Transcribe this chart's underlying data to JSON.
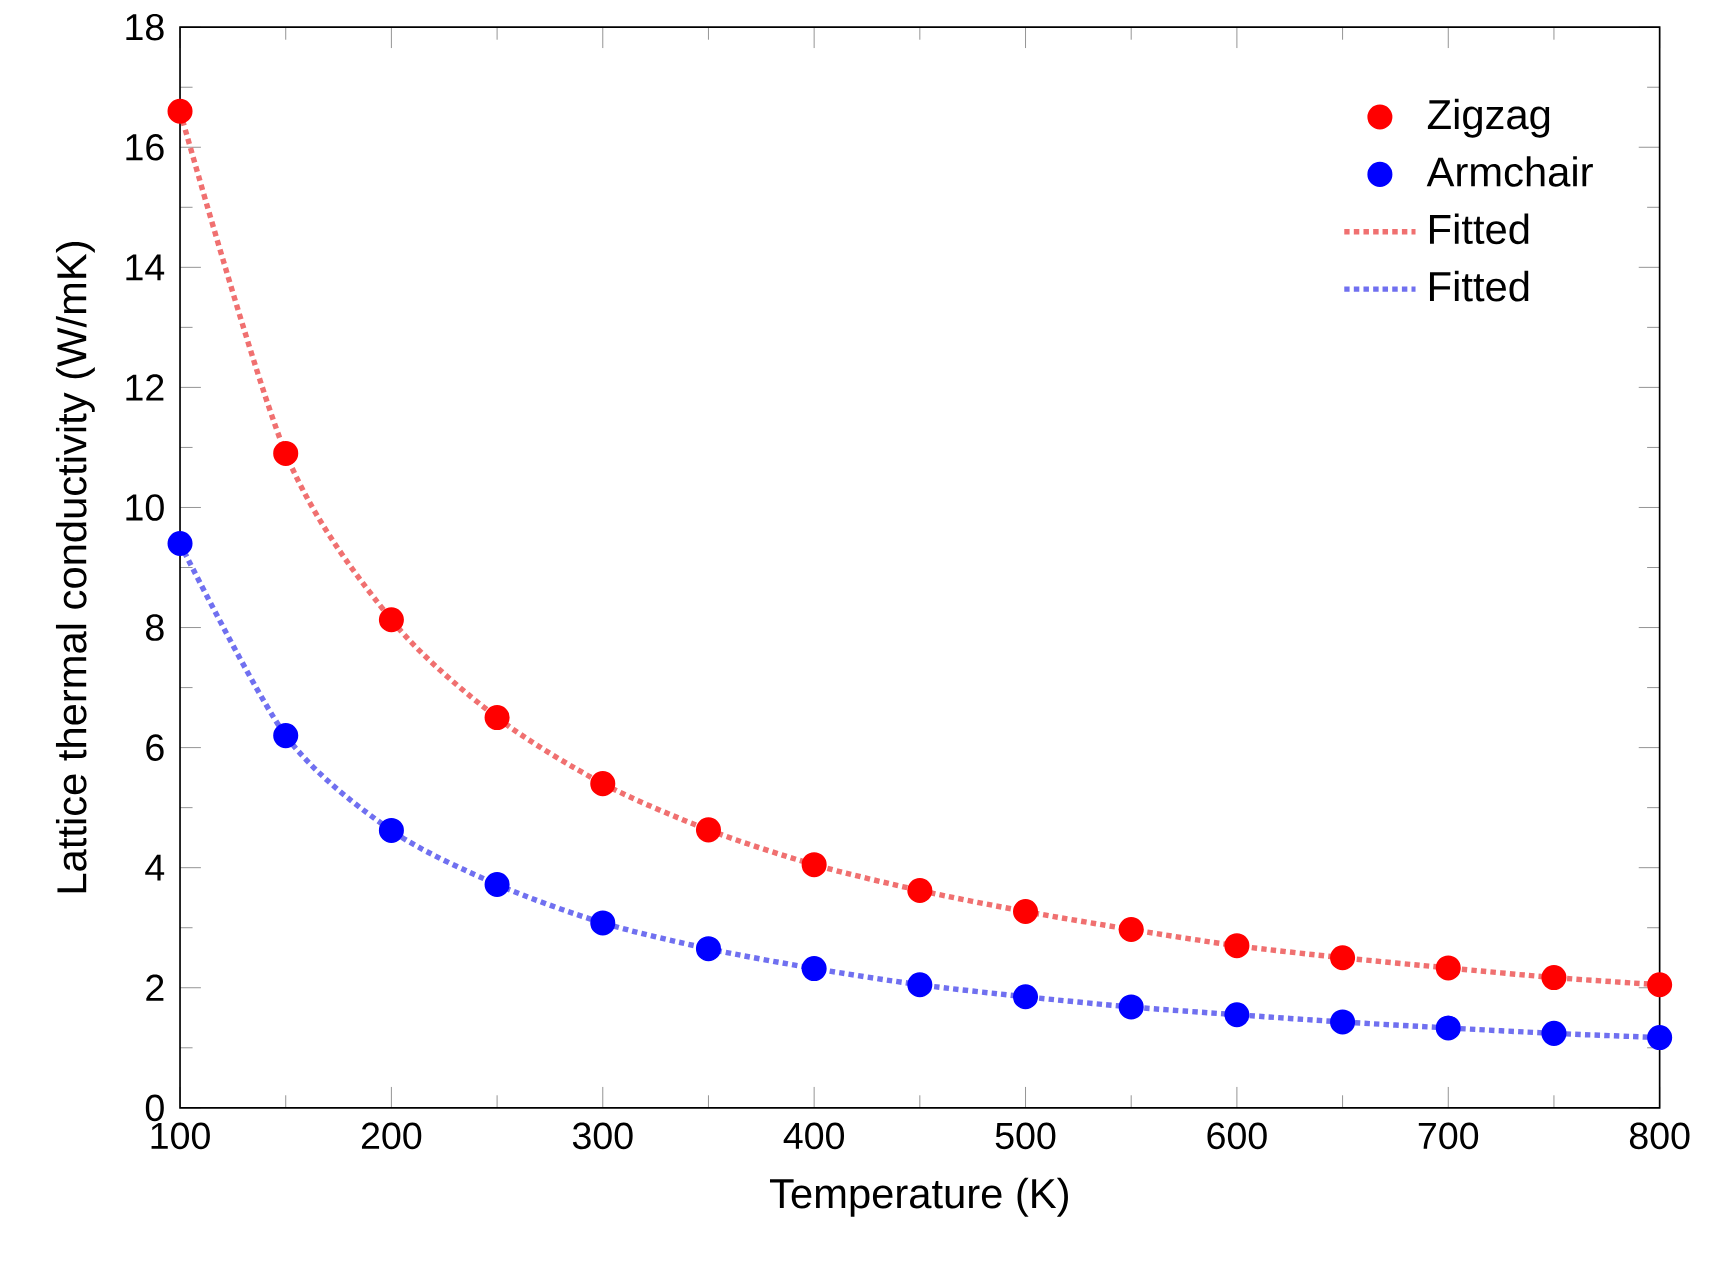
{
  "chart_data": {
    "type": "scatter",
    "xlabel": "Temperature (K)",
    "ylabel": "Lattice thermal conductivity (W/mK)",
    "xlim": [
      100,
      800
    ],
    "ylim": [
      0,
      18
    ],
    "xticks": [
      100,
      200,
      300,
      400,
      500,
      600,
      700,
      800
    ],
    "yticks": [
      0,
      2,
      4,
      6,
      8,
      10,
      12,
      14,
      16,
      18
    ],
    "grid": false,
    "legend": "top right",
    "x": [
      100,
      150,
      200,
      250,
      300,
      350,
      400,
      450,
      500,
      550,
      600,
      650,
      700,
      750,
      800
    ],
    "series": [
      {
        "name": "Zigzag",
        "marker": "circle",
        "color": "#ff0000",
        "values": [
          16.6,
          10.9,
          8.13,
          6.5,
          5.4,
          4.63,
          4.05,
          3.62,
          3.27,
          2.97,
          2.7,
          2.5,
          2.33,
          2.17,
          2.05
        ]
      },
      {
        "name": "Armchair",
        "marker": "circle",
        "color": "#0000ff",
        "values": [
          9.4,
          6.2,
          4.62,
          3.72,
          3.08,
          2.65,
          2.32,
          2.05,
          1.85,
          1.68,
          1.55,
          1.43,
          1.33,
          1.24,
          1.17
        ]
      },
      {
        "name": "Fitted",
        "type": "line",
        "marker": "none",
        "line_style": "dotted",
        "color": "#f07070",
        "values": [
          16.6,
          10.9,
          8.13,
          6.5,
          5.4,
          4.63,
          4.05,
          3.62,
          3.27,
          2.97,
          2.7,
          2.5,
          2.33,
          2.17,
          2.05
        ]
      },
      {
        "name": "Fitted",
        "type": "line",
        "marker": "none",
        "line_style": "dotted",
        "color": "#7070f0",
        "values": [
          9.4,
          6.2,
          4.62,
          3.72,
          3.08,
          2.65,
          2.32,
          2.05,
          1.85,
          1.68,
          1.55,
          1.43,
          1.33,
          1.24,
          1.17
        ]
      }
    ]
  }
}
